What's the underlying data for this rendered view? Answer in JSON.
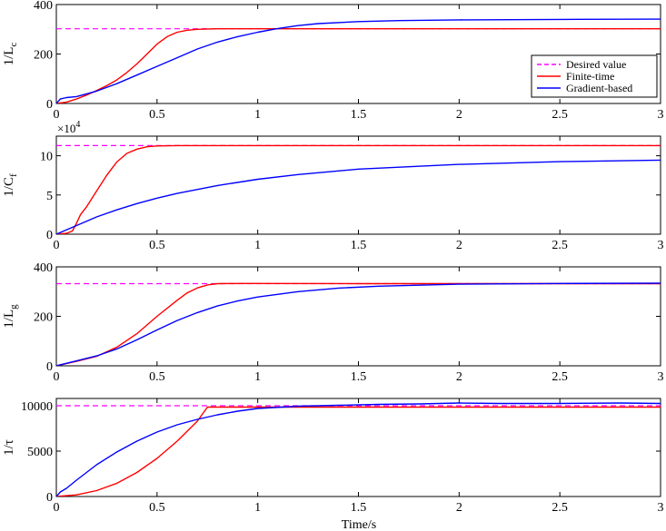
{
  "chart_data": {
    "type": "line",
    "xlabel": "Time/s",
    "xlim": [
      0,
      3
    ],
    "xticks": [
      0,
      0.5,
      1,
      1.5,
      2,
      2.5,
      3
    ],
    "xticklabels": [
      "0",
      "0.5",
      "1",
      "1.5",
      "2",
      "2.5",
      "3"
    ],
    "legend": {
      "placement": "right",
      "entries": [
        {
          "name": "Desired value",
          "color": "#ff00ff",
          "style": "dashed"
        },
        {
          "name": "Finite-time",
          "color": "#ff0000",
          "style": "solid"
        },
        {
          "name": "Gradient-based",
          "color": "#0000ff",
          "style": "solid"
        }
      ]
    },
    "panels": [
      {
        "ylabel_main": "1/L",
        "ylabel_sub": "c",
        "ylim": [
          0,
          400
        ],
        "yticks": [
          0,
          200,
          400
        ],
        "yticklabels": [
          "0",
          "200",
          "400"
        ],
        "exponent": "",
        "desired": 302,
        "series": [
          {
            "name": "Finite-time",
            "color": "#ff0000",
            "x": [
              0,
              0.05,
              0.1,
              0.15,
              0.2,
              0.25,
              0.3,
              0.35,
              0.4,
              0.45,
              0.5,
              0.55,
              0.6,
              0.65,
              0.7,
              0.8,
              1.0,
              1.5,
              2.0,
              2.5,
              3.0
            ],
            "y": [
              0,
              5,
              18,
              34,
              52,
              72,
              95,
              125,
              160,
              200,
              240,
              270,
              288,
              296,
              300,
              302,
              302,
              302,
              302,
              302,
              302
            ]
          },
          {
            "name": "Gradient-based",
            "color": "#0000ff",
            "x": [
              0,
              0.02,
              0.05,
              0.1,
              0.2,
              0.3,
              0.4,
              0.5,
              0.6,
              0.7,
              0.8,
              0.9,
              1.0,
              1.1,
              1.2,
              1.3,
              1.5,
              1.7,
              2.0,
              2.5,
              3.0
            ],
            "y": [
              0,
              18,
              24,
              28,
              50,
              80,
              115,
              150,
              185,
              220,
              248,
              270,
              288,
              303,
              315,
              323,
              331,
              335,
              338,
              340,
              341
            ]
          }
        ]
      },
      {
        "ylabel_main": "1/C",
        "ylabel_sub": "f",
        "ylim": [
          0,
          125000
        ],
        "yticks": [
          0,
          50000,
          100000
        ],
        "yticklabels": [
          "0",
          "5",
          "10"
        ],
        "exponent": "×10^4",
        "desired": 113000,
        "series": [
          {
            "name": "Finite-time",
            "color": "#ff0000",
            "x": [
              0,
              0.05,
              0.08,
              0.1,
              0.12,
              0.15,
              0.2,
              0.25,
              0.3,
              0.35,
              0.4,
              0.45,
              0.5,
              0.6,
              0.7,
              1.0,
              1.5,
              2.0,
              2.5,
              3.0
            ],
            "y": [
              0,
              1000,
              4000,
              14000,
              25000,
              35000,
              55000,
              75000,
              92000,
              103000,
              108500,
              111500,
              112500,
              113000,
              113000,
              113000,
              113000,
              113000,
              113000,
              113000
            ]
          },
          {
            "name": "Gradient-based",
            "color": "#0000ff",
            "x": [
              0,
              0.1,
              0.2,
              0.3,
              0.4,
              0.5,
              0.6,
              0.8,
              1.0,
              1.2,
              1.5,
              2.0,
              2.5,
              3.0
            ],
            "y": [
              0,
              11000,
              22000,
              31000,
              39000,
              46000,
              52000,
              62000,
              70000,
              76000,
              83000,
              89000,
              92500,
              94500
            ]
          }
        ]
      },
      {
        "ylabel_main": "1/L",
        "ylabel_sub": "g",
        "ylim": [
          0,
          400
        ],
        "yticks": [
          0,
          200,
          400
        ],
        "yticklabels": [
          "0",
          "200",
          "400"
        ],
        "exponent": "",
        "desired": 332,
        "series": [
          {
            "name": "Finite-time",
            "color": "#ff0000",
            "x": [
              0,
              0.1,
              0.2,
              0.3,
              0.4,
              0.5,
              0.6,
              0.65,
              0.7,
              0.75,
              0.8,
              0.9,
              1.0,
              1.5,
              2.0,
              2.5,
              3.0
            ],
            "y": [
              0,
              18,
              38,
              75,
              130,
              200,
              265,
              295,
              315,
              327,
              332,
              333,
              333,
              332,
              332,
              332,
              332
            ]
          },
          {
            "name": "Gradient-based",
            "color": "#0000ff",
            "x": [
              0,
              0.1,
              0.2,
              0.3,
              0.4,
              0.5,
              0.6,
              0.7,
              0.8,
              0.9,
              1.0,
              1.2,
              1.4,
              1.6,
              2.0,
              2.5,
              3.0
            ],
            "y": [
              0,
              20,
              40,
              68,
              105,
              145,
              183,
              215,
              242,
              262,
              278,
              300,
              314,
              322,
              330,
              333,
              334
            ]
          }
        ]
      },
      {
        "ylabel_main": "1/τ",
        "ylabel_sub": "",
        "ylim": [
          0,
          10800
        ],
        "yticks": [
          0,
          5000,
          10000
        ],
        "yticklabels": [
          "0",
          "5000",
          "10000"
        ],
        "exponent": "",
        "desired": 10000,
        "series": [
          {
            "name": "Finite-time",
            "color": "#ff0000",
            "x": [
              0,
              0.1,
              0.2,
              0.3,
              0.4,
              0.5,
              0.6,
              0.7,
              0.75,
              0.8,
              1.0,
              1.5,
              2.0,
              2.5,
              3.0
            ],
            "y": [
              0,
              180,
              650,
              1450,
              2650,
              4200,
              6100,
              8300,
              9850,
              9850,
              9850,
              9850,
              9850,
              9850,
              9850
            ]
          },
          {
            "name": "Gradient-based",
            "color": "#0000ff",
            "x": [
              0,
              0.02,
              0.05,
              0.1,
              0.2,
              0.3,
              0.4,
              0.5,
              0.6,
              0.7,
              0.8,
              0.9,
              1.0,
              1.2,
              1.4,
              1.6,
              1.8,
              2.0,
              2.2,
              2.5,
              2.8,
              3.0
            ],
            "y": [
              0,
              500,
              900,
              1800,
              3500,
              4900,
              6100,
              7100,
              7900,
              8500,
              9000,
              9400,
              9700,
              9950,
              10050,
              10150,
              10200,
              10300,
              10250,
              10250,
              10300,
              10250
            ]
          }
        ]
      }
    ]
  }
}
